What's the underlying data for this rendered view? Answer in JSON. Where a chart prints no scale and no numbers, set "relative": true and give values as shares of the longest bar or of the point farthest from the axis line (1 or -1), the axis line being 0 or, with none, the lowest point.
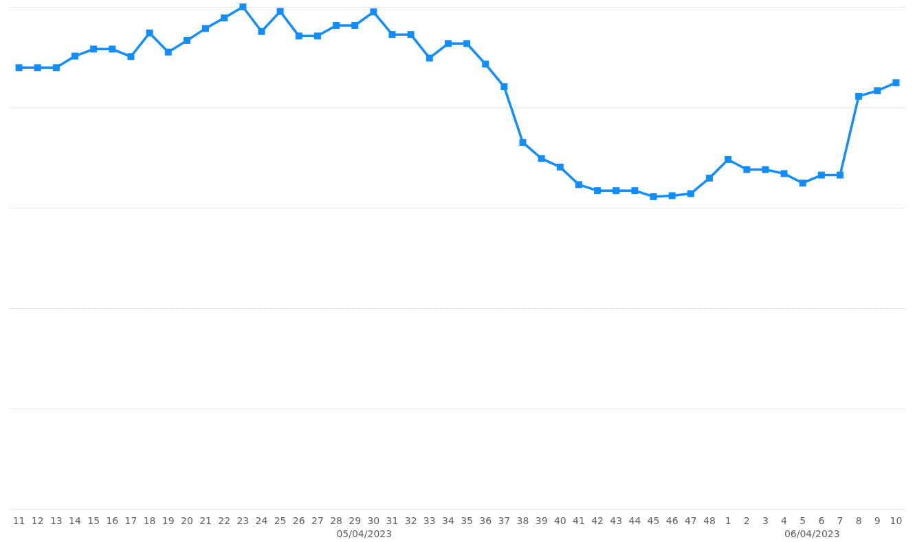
{
  "chart_data": {
    "type": "line",
    "relative": true,
    "grid": "y",
    "marker": "square",
    "line_style": "solid",
    "categories": [
      "11",
      "12",
      "13",
      "14",
      "15",
      "16",
      "17",
      "18",
      "19",
      "20",
      "21",
      "22",
      "23",
      "24",
      "25",
      "26",
      "27",
      "28",
      "29",
      "30",
      "31",
      "32",
      "33",
      "34",
      "35",
      "36",
      "37",
      "38",
      "39",
      "40",
      "41",
      "42",
      "43",
      "44",
      "45",
      "46",
      "47",
      "48",
      "1",
      "2",
      "3",
      "4",
      "5",
      "6",
      "7",
      "8",
      "9",
      "10"
    ],
    "series": [
      {
        "color": "#118dff",
        "values": [
          0.879,
          0.879,
          0.879,
          0.902,
          0.916,
          0.916,
          0.901,
          0.948,
          0.91,
          0.933,
          0.957,
          0.978,
          1,
          0.951,
          0.991,
          0.942,
          0.942,
          0.963,
          0.963,
          0.99,
          0.945,
          0.945,
          0.898,
          0.927,
          0.927,
          0.886,
          0.841,
          0.73,
          0.698,
          0.681,
          0.646,
          0.634,
          0.634,
          0.634,
          0.622,
          0.624,
          0.628,
          0.659,
          0.696,
          0.676,
          0.676,
          0.668,
          0.649,
          0.665,
          0.665,
          0.822,
          0.833,
          0.849
        ]
      }
    ],
    "annotations": [
      "05/04/2023",
      "06/04/2023"
    ]
  }
}
